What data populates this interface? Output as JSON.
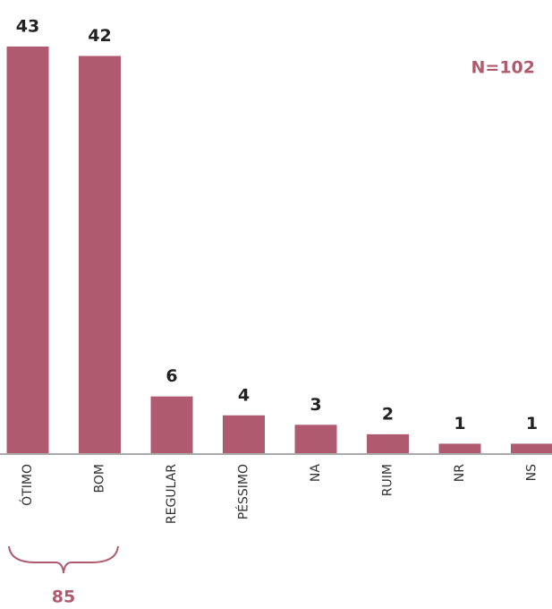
{
  "chart_data": {
    "type": "bar",
    "categories": [
      "ÓTIMO",
      "BOM",
      "REGULAR",
      "PÉSSIMO",
      "NA",
      "RUIM",
      "NR",
      "NS"
    ],
    "values": [
      43,
      42,
      6,
      4,
      3,
      2,
      1,
      1
    ],
    "color": "#b05a70",
    "annotations": [
      "N=102",
      "85"
    ]
  }
}
